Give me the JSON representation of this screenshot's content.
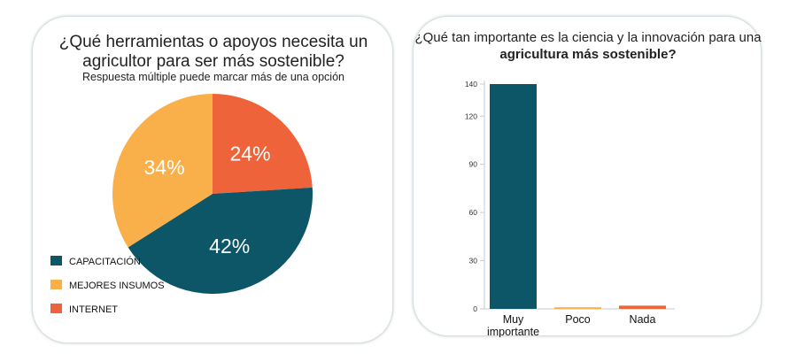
{
  "left_chart": {
    "title": "¿Qué herramientas o apoyos necesita un agricultor para ser más sostenible?",
    "subtitle": "Respuesta múltiple puede marcar más de una opción"
  },
  "right_chart": {
    "title_regular": "¿Qué tan importante es la ciencia y la innovación para una",
    "title_bold": "agricultura más sostenible?"
  },
  "chart_data": [
    {
      "type": "pie",
      "title": "¿Qué herramientas o apoyos necesita un agricultor para ser más sostenible?",
      "subtitle": "Respuesta múltiple puede marcar más de una opción",
      "slices": [
        {
          "label": "INTERNET",
          "value": 24,
          "display": "24%",
          "color": "#ee6339"
        },
        {
          "label": "CAPACITACIÓN",
          "value": 42,
          "display": "42%",
          "color": "#0d5667"
        },
        {
          "label": "MEJORES INSUMOS",
          "value": 34,
          "display": "34%",
          "color": "#f9b04a"
        }
      ],
      "legend_order": [
        "CAPACITACIÓN",
        "MEJORES INSUMOS",
        "INTERNET"
      ],
      "legend_position": "bottom-left"
    },
    {
      "type": "bar",
      "title": "¿Qué tan importante es la ciencia y la innovación para una agricultura más sostenible?",
      "categories": [
        "Muy importante",
        "Poco",
        "Nada"
      ],
      "values": [
        140,
        1,
        2
      ],
      "colors": [
        "#0d5667",
        "#f9b04a",
        "#ee6339"
      ],
      "yticks": [
        0,
        30,
        60,
        90,
        120,
        140
      ],
      "ylim": [
        0,
        140
      ],
      "grid": false
    }
  ]
}
